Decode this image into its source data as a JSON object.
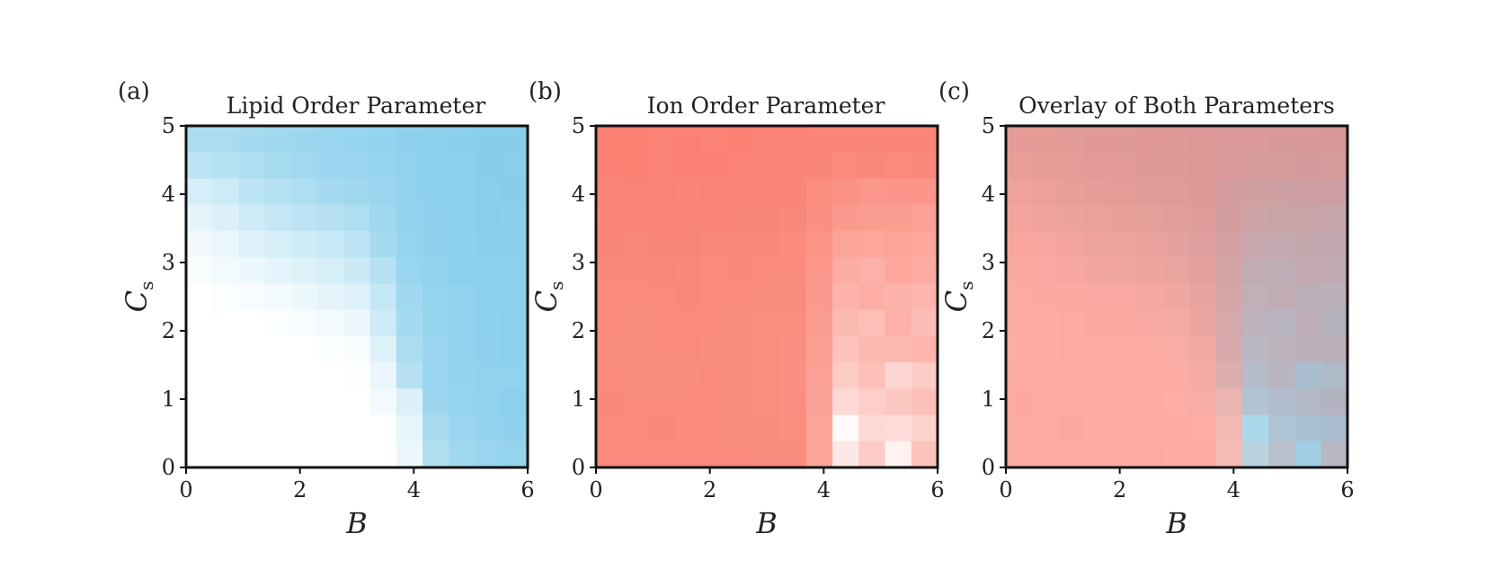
{
  "chart_data": [
    {
      "type": "heatmap",
      "panel_label": "(a)",
      "title": "Lipid Order Parameter",
      "xlabel": "B",
      "ylabel": "C",
      "ylabel_subscript": "s",
      "xlim": [
        0,
        6
      ],
      "ylim": [
        0,
        5
      ],
      "xticks": [
        0,
        2,
        4,
        6
      ],
      "yticks": [
        0,
        1,
        2,
        3,
        4,
        5
      ],
      "colormap": [
        "#ffffff",
        "#87ceeb"
      ],
      "n_cols": 13,
      "n_rows": 13,
      "values": [
        [
          0.7,
          0.7,
          0.75,
          0.8,
          0.82,
          0.85,
          0.87,
          0.9,
          0.93,
          0.95,
          0.97,
          1.0,
          1.0
        ],
        [
          0.55,
          0.62,
          0.68,
          0.73,
          0.77,
          0.82,
          0.84,
          0.88,
          0.92,
          0.95,
          0.96,
          1.0,
          0.98
        ],
        [
          0.35,
          0.42,
          0.55,
          0.62,
          0.68,
          0.75,
          0.79,
          0.84,
          0.92,
          0.95,
          0.96,
          0.98,
          1.0
        ],
        [
          0.22,
          0.3,
          0.4,
          0.48,
          0.55,
          0.62,
          0.68,
          0.8,
          0.9,
          0.93,
          0.95,
          0.98,
          0.97
        ],
        [
          0.12,
          0.18,
          0.26,
          0.35,
          0.4,
          0.47,
          0.56,
          0.75,
          0.88,
          0.93,
          0.95,
          0.97,
          0.97
        ],
        [
          0.05,
          0.1,
          0.15,
          0.22,
          0.28,
          0.35,
          0.43,
          0.62,
          0.85,
          0.92,
          0.95,
          0.95,
          0.96
        ],
        [
          0.0,
          0.03,
          0.06,
          0.1,
          0.15,
          0.22,
          0.28,
          0.5,
          0.8,
          0.88,
          0.92,
          0.95,
          0.95
        ],
        [
          0.0,
          0.0,
          0.0,
          0.03,
          0.06,
          0.1,
          0.15,
          0.4,
          0.75,
          0.88,
          0.9,
          0.94,
          0.95
        ],
        [
          0.0,
          0.0,
          0.0,
          0.0,
          0.0,
          0.03,
          0.06,
          0.28,
          0.7,
          0.85,
          0.9,
          0.93,
          0.95
        ],
        [
          0.0,
          0.0,
          0.0,
          0.0,
          0.0,
          0.0,
          0.02,
          0.18,
          0.62,
          0.85,
          0.9,
          0.92,
          0.92
        ],
        [
          0.0,
          0.0,
          0.0,
          0.0,
          0.0,
          0.0,
          0.0,
          0.1,
          0.3,
          0.82,
          0.88,
          0.92,
          0.95
        ],
        [
          0.0,
          0.0,
          0.0,
          0.0,
          0.0,
          0.0,
          0.0,
          0.0,
          0.2,
          0.72,
          0.85,
          0.9,
          0.93
        ],
        [
          0.0,
          0.0,
          0.0,
          0.0,
          0.0,
          0.0,
          0.0,
          0.0,
          0.15,
          0.65,
          0.8,
          0.85,
          0.88
        ]
      ]
    },
    {
      "type": "heatmap",
      "panel_label": "(b)",
      "title": "Ion Order Parameter",
      "xlabel": "B",
      "ylabel": "C",
      "ylabel_subscript": "s",
      "xlim": [
        0,
        6
      ],
      "ylim": [
        0,
        5
      ],
      "xticks": [
        0,
        2,
        4,
        6
      ],
      "yticks": [
        0,
        1,
        2,
        3,
        4,
        5
      ],
      "colormap": [
        "#ffffff",
        "#fa8072"
      ],
      "n_cols": 13,
      "n_rows": 13,
      "values": [
        [
          1.0,
          1.0,
          0.98,
          0.99,
          0.98,
          1.0,
          0.98,
          0.98,
          0.96,
          0.96,
          0.95,
          0.95,
          0.96
        ],
        [
          0.99,
          1.0,
          0.98,
          0.99,
          0.99,
          0.98,
          0.97,
          0.97,
          0.95,
          0.92,
          0.93,
          0.92,
          0.93
        ],
        [
          0.97,
          0.98,
          0.98,
          0.97,
          0.98,
          0.97,
          0.96,
          0.96,
          0.9,
          0.86,
          0.82,
          0.84,
          0.84
        ],
        [
          0.96,
          0.96,
          0.96,
          0.95,
          0.96,
          0.95,
          0.95,
          0.94,
          0.88,
          0.8,
          0.78,
          0.78,
          0.74
        ],
        [
          0.95,
          0.94,
          0.95,
          0.95,
          0.94,
          0.94,
          0.93,
          0.92,
          0.85,
          0.72,
          0.7,
          0.72,
          0.7
        ],
        [
          0.93,
          0.93,
          0.94,
          0.93,
          0.92,
          0.93,
          0.92,
          0.92,
          0.82,
          0.65,
          0.62,
          0.7,
          0.66
        ],
        [
          0.92,
          0.92,
          0.92,
          0.93,
          0.92,
          0.92,
          0.91,
          0.91,
          0.8,
          0.6,
          0.64,
          0.6,
          0.58
        ],
        [
          0.92,
          0.91,
          0.92,
          0.92,
          0.92,
          0.91,
          0.9,
          0.9,
          0.78,
          0.55,
          0.5,
          0.62,
          0.52
        ],
        [
          0.91,
          0.91,
          0.92,
          0.92,
          0.91,
          0.91,
          0.9,
          0.89,
          0.76,
          0.48,
          0.55,
          0.55,
          0.58
        ],
        [
          0.92,
          0.91,
          0.91,
          0.91,
          0.92,
          0.91,
          0.9,
          0.88,
          0.74,
          0.42,
          0.5,
          0.32,
          0.4
        ],
        [
          0.93,
          0.92,
          0.92,
          0.92,
          0.92,
          0.91,
          0.9,
          0.89,
          0.73,
          0.3,
          0.38,
          0.44,
          0.5
        ],
        [
          0.92,
          0.92,
          0.93,
          0.92,
          0.92,
          0.91,
          0.91,
          0.9,
          0.72,
          0.05,
          0.3,
          0.28,
          0.35
        ],
        [
          0.92,
          0.92,
          0.92,
          0.92,
          0.92,
          0.92,
          0.91,
          0.91,
          0.72,
          0.18,
          0.4,
          0.1,
          0.48
        ]
      ]
    },
    {
      "type": "heatmap",
      "panel_label": "(c)",
      "title": "Overlay of Both Parameters",
      "xlabel": "B",
      "ylabel": "C",
      "ylabel_subscript": "s",
      "xlim": [
        0,
        6
      ],
      "ylim": [
        0,
        5
      ],
      "xticks": [
        0,
        2,
        4,
        6
      ],
      "yticks": [
        0,
        1,
        2,
        3,
        4,
        5
      ],
      "overlay_of": [
        "Lipid Order Parameter",
        "Ion Order Parameter"
      ]
    }
  ]
}
